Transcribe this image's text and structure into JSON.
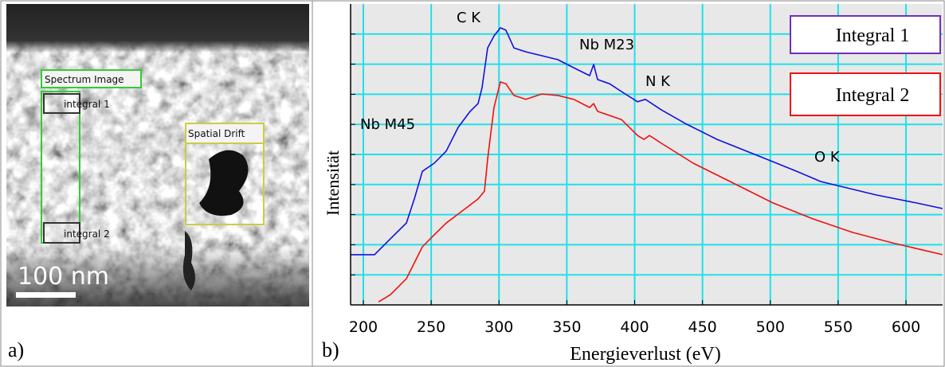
{
  "panel_a": {
    "label": "a)",
    "regions": [
      "Spectrum Image",
      "integral 1",
      "integral 2",
      "Spatial Drift"
    ],
    "scale_bar": "100 nm"
  },
  "chart_data": {
    "type": "line",
    "panel_label": "b)",
    "x_label": "Energieverlust (eV)",
    "y_label": "Intensität",
    "xlim": [
      190.6,
      627
    ],
    "xticks": [
      200,
      250,
      300,
      350,
      400,
      450,
      500,
      550,
      600
    ],
    "ylim": [
      0,
      100
    ],
    "yticks": [
      10,
      20,
      30,
      40,
      50,
      60,
      70,
      80,
      90
    ],
    "grid": true,
    "annotations": [
      "C K",
      "Nb M23",
      "N K",
      "Nb M45",
      "O K"
    ],
    "series": [
      {
        "name": "Integral 1",
        "color": "#1010e0",
        "x": [
          190.6,
          208.2,
          220.0,
          231.7,
          237.6,
          243.5,
          252.3,
          261.1,
          269.9,
          278.7,
          284.6,
          287.5,
          291.6,
          296.3,
          301.0,
          305.1,
          311.0,
          319.8,
          331.6,
          343.3,
          355.1,
          366.8,
          369.8,
          372.7,
          381.5,
          390.3,
          402.1,
          407.9,
          419.7,
          437.3,
          460.8,
          490.2,
          519.5,
          537.1,
          548.9,
          578.3,
          607.6,
          627.0
        ],
        "values": [
          16.7,
          16.7,
          22.0,
          27.2,
          35.2,
          44.4,
          47.1,
          51.1,
          59.0,
          64.3,
          66.9,
          72.2,
          85.4,
          89.4,
          92.1,
          91.3,
          85.4,
          84.1,
          82.8,
          81.5,
          78.8,
          76.2,
          79.9,
          74.9,
          73.5,
          70.9,
          67.5,
          68.3,
          64.8,
          60.3,
          55.0,
          49.7,
          44.4,
          41.0,
          39.7,
          36.5,
          33.9,
          32.0
        ]
      },
      {
        "name": "Integral 2",
        "color": "#f01010",
        "x": [
          211.2,
          220.0,
          231.7,
          243.5,
          252.3,
          261.1,
          272.8,
          284.6,
          289.3,
          291.6,
          293.4,
          296.3,
          301.0,
          305.1,
          311.0,
          319.8,
          331.6,
          343.3,
          355.1,
          366.8,
          369.8,
          372.7,
          390.3,
          402.1,
          406.8,
          410.9,
          419.7,
          443.2,
          472.5,
          501.9,
          531.3,
          560.6,
          590.0,
          627.0
        ],
        "values": [
          1.0,
          3.4,
          8.7,
          19.3,
          23.3,
          27.2,
          31.2,
          35.2,
          37.8,
          48.4,
          55.0,
          65.6,
          74.1,
          73.5,
          69.6,
          68.3,
          70.1,
          69.6,
          68.3,
          65.6,
          66.9,
          64.3,
          61.6,
          56.3,
          55.0,
          56.3,
          53.7,
          47.1,
          40.5,
          33.9,
          28.6,
          24.1,
          20.6,
          16.7
        ]
      }
    ]
  }
}
